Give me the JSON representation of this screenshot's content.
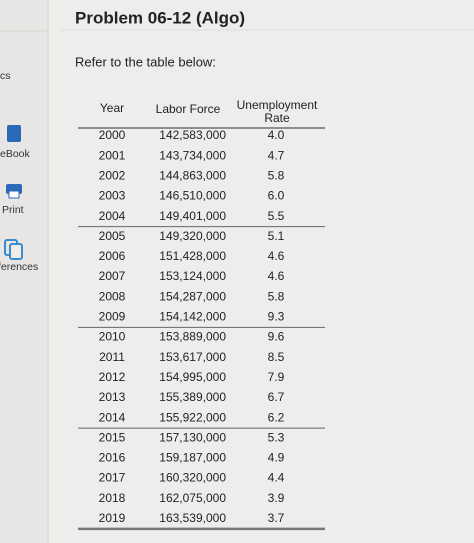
{
  "header": {
    "title": "Problem 06-12 (Algo)",
    "instruction": "Refer to the table below:"
  },
  "sidebar": {
    "top": "cs",
    "items": [
      "eBook",
      "Print",
      "ferences"
    ]
  },
  "table": {
    "columns": [
      "Year",
      "Labor Force",
      "Unemployment Rate"
    ],
    "rows": [
      [
        "2000",
        "142,583,000",
        "4.0"
      ],
      [
        "2001",
        "143,734,000",
        "4.7"
      ],
      [
        "2002",
        "144,863,000",
        "5.8"
      ],
      [
        "2003",
        "146,510,000",
        "6.0"
      ],
      [
        "2004",
        "149,401,000",
        "5.5"
      ],
      [
        "2005",
        "149,320,000",
        "5.1"
      ],
      [
        "2006",
        "151,428,000",
        "4.6"
      ],
      [
        "2007",
        "153,124,000",
        "4.6"
      ],
      [
        "2008",
        "154,287,000",
        "5.8"
      ],
      [
        "2009",
        "154,142,000",
        "9.3"
      ],
      [
        "2010",
        "153,889,000",
        "9.6"
      ],
      [
        "2011",
        "153,617,000",
        "8.5"
      ],
      [
        "2012",
        "154,995,000",
        "7.9"
      ],
      [
        "2013",
        "155,389,000",
        "6.7"
      ],
      [
        "2014",
        "155,922,000",
        "6.2"
      ],
      [
        "2015",
        "157,130,000",
        "5.3"
      ],
      [
        "2016",
        "159,187,000",
        "4.9"
      ],
      [
        "2017",
        "160,320,000",
        "4.4"
      ],
      [
        "2018",
        "162,075,000",
        "3.9"
      ],
      [
        "2019",
        "163,539,000",
        "3.7"
      ]
    ]
  }
}
